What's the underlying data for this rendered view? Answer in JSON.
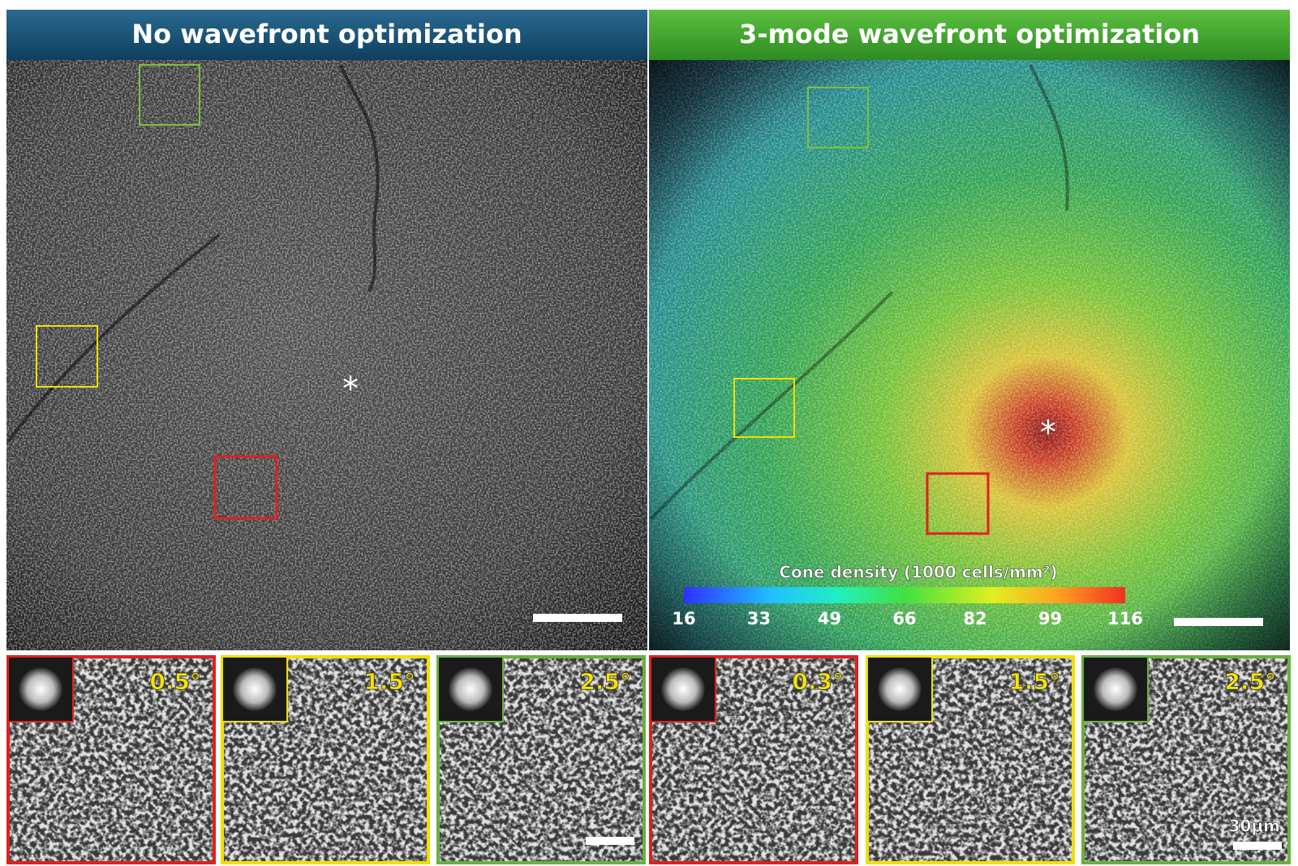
{
  "panels": [
    {
      "title": "No wavefront optimization"
    },
    {
      "title": "3-mode  wavefront optimization"
    }
  ],
  "colorbar": {
    "label": "Cone density (1000 cells/mm²)",
    "ticks": [
      16,
      33,
      49,
      66,
      82,
      99,
      116
    ]
  },
  "insets": [
    {
      "label": "0.5°"
    },
    {
      "label": "1.5°"
    },
    {
      "label": "2.5°"
    },
    {
      "label": "0.3°"
    },
    {
      "label": "1.5°"
    },
    {
      "label": "2.5°"
    }
  ],
  "scale_label": "30μm"
}
